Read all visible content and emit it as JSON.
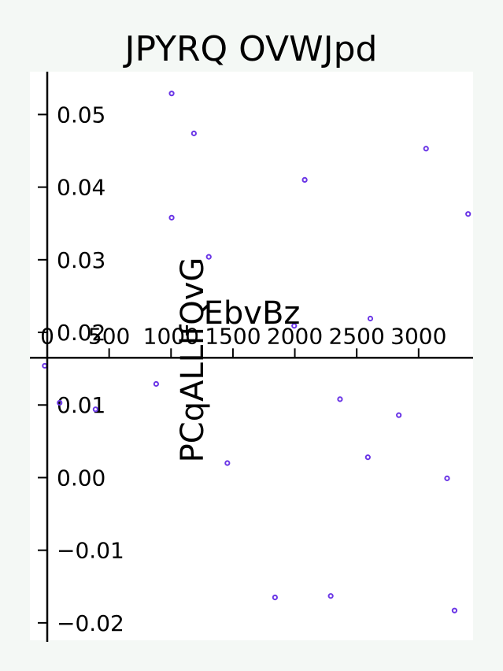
{
  "colors": {
    "figure_background": "#f4f8f5",
    "plot_background": "#ffffff",
    "marker": "#6a35e6",
    "axis": "#000000"
  },
  "chart_data": {
    "type": "scatter",
    "title": "JPYRQ OVWJpd",
    "xlabel": "EbvBz",
    "ylabel": "PCqALLlfQvG",
    "xlim": [
      -140,
      3440
    ],
    "ylim": [
      -0.0224,
      0.0559
    ],
    "xticks": [
      0,
      500,
      1000,
      1500,
      2000,
      2500,
      3000
    ],
    "xtick_labels": [
      "0",
      "500",
      "1000",
      "1500",
      "2000",
      "2500",
      "3000"
    ],
    "yticks": [
      -0.02,
      -0.01,
      0.0,
      0.01,
      0.02,
      0.03,
      0.04,
      0.05
    ],
    "ytick_labels": [
      "−0.02",
      "−0.01",
      "0.00",
      "0.01",
      "0.02",
      "0.03",
      "0.04",
      "0.05"
    ],
    "grid": false,
    "legend": null,
    "marker": "open-circle",
    "series": [
      {
        "points": [
          [
            -20,
            0.0154
          ],
          [
            100,
            0.0103
          ],
          [
            390,
            0.0094
          ],
          [
            880,
            0.0129
          ],
          [
            1005,
            0.0529
          ],
          [
            1005,
            0.0358
          ],
          [
            1185,
            0.0474
          ],
          [
            1305,
            0.0304
          ],
          [
            1455,
            0.002
          ],
          [
            1840,
            -0.0165
          ],
          [
            1995,
            0.0209
          ],
          [
            2080,
            0.041
          ],
          [
            2290,
            -0.0163
          ],
          [
            2365,
            0.0108
          ],
          [
            2590,
            0.0028
          ],
          [
            2610,
            0.0219
          ],
          [
            2840,
            0.0086
          ],
          [
            3060,
            0.0453
          ],
          [
            3230,
            -0.0001
          ],
          [
            3290,
            -0.0183
          ],
          [
            3400,
            0.0363
          ]
        ]
      }
    ]
  }
}
